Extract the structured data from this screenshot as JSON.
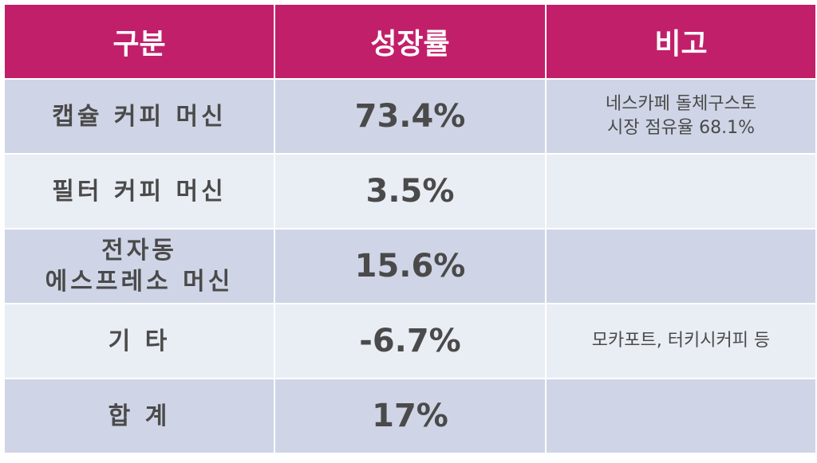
{
  "table": {
    "header": [
      "구분",
      "성장률",
      "비고"
    ],
    "rows": [
      [
        "캡슐 커피 머신",
        "73.4%",
        "네스카페 돌체구스토\n시장 점유율 68.1%"
      ],
      [
        "필터 커피 머신",
        "3.5%",
        null
      ],
      [
        "전자동\n에스프레소 머신",
        "15.6%",
        null
      ],
      [
        "기 타",
        "-6.7%",
        "모카포트, 터키시커피 등"
      ],
      [
        "합 계",
        "17%",
        null
      ]
    ]
  }
}
